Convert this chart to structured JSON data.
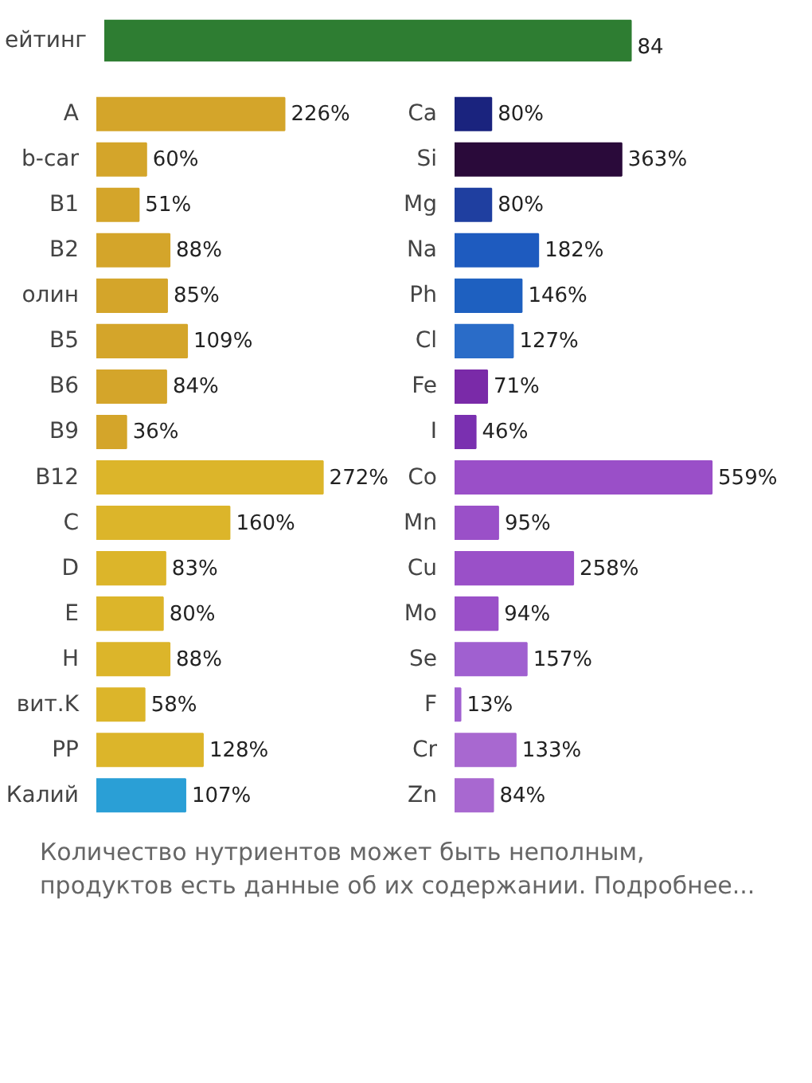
{
  "chart_data": [
    {
      "type": "bar",
      "orientation": "horizontal",
      "categories": [
        "ейтинг"
      ],
      "values": [
        84
      ],
      "colors": [
        "#2e7d32"
      ],
      "value_labels": [
        "84"
      ],
      "tick_labels": "y"
    },
    {
      "type": "bar",
      "orientation": "horizontal",
      "categories": [
        "A",
        "b-car",
        "B1",
        "B2",
        "олин",
        "B5",
        "B6",
        "B9",
        "B12",
        "C",
        "D",
        "E",
        "H",
        "вит.K",
        "PP",
        "Калий"
      ],
      "values": [
        226,
        60,
        51,
        88,
        85,
        109,
        84,
        36,
        272,
        160,
        83,
        80,
        88,
        58,
        128,
        107
      ],
      "colors": [
        "#d4a52a",
        "#d4a52a",
        "#d4a52a",
        "#d4a52a",
        "#d4a52a",
        "#d4a52a",
        "#d4a52a",
        "#d4a52a",
        "#dcb52a",
        "#dcb52a",
        "#dcb52a",
        "#dcb52a",
        "#dcb52a",
        "#dcb52a",
        "#dcb52a",
        "#2a9fd6"
      ],
      "value_labels": [
        "226%",
        "60%",
        "51%",
        "88%",
        "85%",
        "109%",
        "84%",
        "36%",
        "272%",
        "160%",
        "83%",
        "80%",
        "88%",
        "58%",
        "128%",
        "107%"
      ],
      "tick_labels": "y"
    },
    {
      "type": "bar",
      "orientation": "horizontal",
      "categories": [
        "Ca",
        "Si",
        "Mg",
        "Na",
        "Ph",
        "Cl",
        "Fe",
        "I",
        "Co",
        "Mn",
        "Cu",
        "Mo",
        "Se",
        "F",
        "Cr",
        "Zn"
      ],
      "values": [
        80,
        363,
        80,
        182,
        146,
        127,
        71,
        46,
        559,
        95,
        258,
        94,
        157,
        13,
        133,
        84
      ],
      "colors": [
        "#1a237e",
        "#2a0a3a",
        "#1f3fa0",
        "#1e5bbf",
        "#1e60c0",
        "#2a6cc8",
        "#7a2aa8",
        "#7a30b0",
        "#9a4fc8",
        "#9a50c8",
        "#9a50c8",
        "#9a50c8",
        "#a060d0",
        "#a060d0",
        "#a868d0",
        "#a868d0"
      ],
      "value_labels": [
        "80%",
        "363%",
        "80%",
        "182%",
        "146%",
        "127%",
        "71%",
        "46%",
        "559%",
        "95%",
        "258%",
        "94%",
        "157%",
        "13%",
        "133%",
        "84%"
      ],
      "tick_labels": "y",
      "annotations": [
        "Количество нутриентов может быть неполным, продуктов есть данные об их содержании. Подробнее..."
      ]
    }
  ]
}
